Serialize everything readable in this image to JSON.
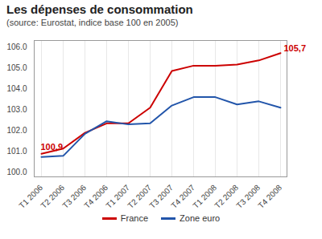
{
  "chart_data": {
    "type": "line",
    "title": "Les dépenses de consommation",
    "subtitle": "(source: Eurostat, indice base 100 en 2005)",
    "categories": [
      "T1 2006",
      "T2 2006",
      "T3 2006",
      "T4 2006",
      "T1 2007",
      "T2 2007",
      "T3 2007",
      "T4 2007",
      "T1 2008",
      "T2 2008",
      "T3 2008",
      "T4 2008"
    ],
    "series": [
      {
        "name": "France",
        "color": "#cc0000",
        "values": [
          100.9,
          101.15,
          101.9,
          102.35,
          102.35,
          103.1,
          104.85,
          105.1,
          105.1,
          105.15,
          105.35,
          105.7
        ]
      },
      {
        "name": "Zone euro",
        "color": "#2255aa",
        "values": [
          100.75,
          100.8,
          101.85,
          102.45,
          102.3,
          102.35,
          103.2,
          103.6,
          103.6,
          103.25,
          103.4,
          103.1
        ]
      }
    ],
    "ylim": [
      99.8,
      106.3
    ],
    "yticks": [
      100,
      101,
      102,
      103,
      104,
      105,
      106
    ],
    "grid": "x",
    "legend": "bottom",
    "annotations": [
      {
        "text": "100,9",
        "category": "T1 2006",
        "value": 100.9,
        "series": "France"
      },
      {
        "text": "105,7",
        "category": "T4 2008",
        "value": 105.7,
        "series": "France"
      }
    ]
  }
}
